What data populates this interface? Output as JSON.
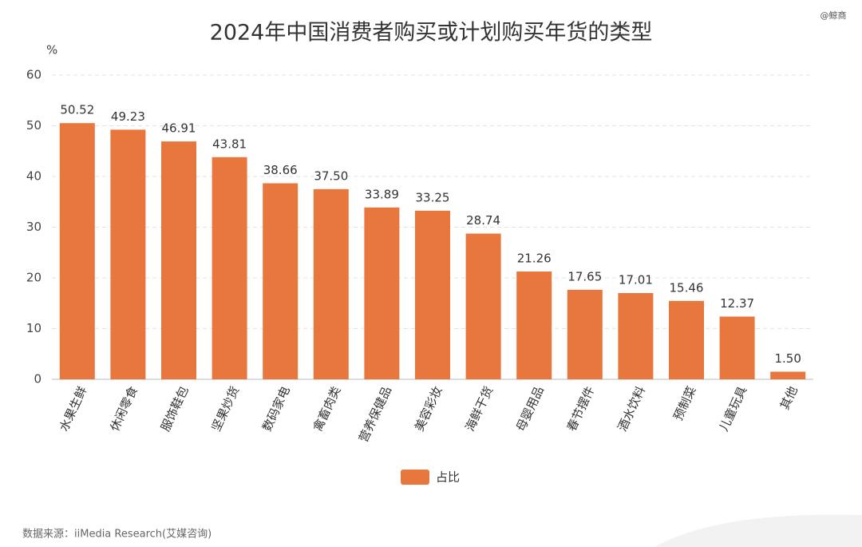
{
  "chart_data": {
    "type": "bar",
    "title": "2024年中国消费者购买或计划购买年货的类型",
    "y_unit": "%",
    "source": "数据来源：iiMedia Research(艾媒咨询)",
    "watermark": "@鲸商",
    "categories": [
      "水果生鲜",
      "休闲零食",
      "服饰鞋包",
      "坚果炒货",
      "数码家电",
      "禽畜肉类",
      "营养保健品",
      "美容彩妆",
      "海鲜干货",
      "母婴用品",
      "春节摆件",
      "酒水饮料",
      "预制菜",
      "儿童玩具",
      "其他"
    ],
    "series": [
      {
        "name": "占比",
        "color": "#e8773d",
        "values": [
          50.52,
          49.23,
          46.91,
          43.81,
          38.66,
          37.5,
          33.89,
          33.25,
          28.74,
          21.26,
          17.65,
          17.01,
          15.46,
          12.37,
          1.5
        ],
        "value_labels": [
          "50.52",
          "49.23",
          "46.91",
          "43.81",
          "38.66",
          "37.50",
          "33.89",
          "33.25",
          "28.74",
          "21.26",
          "17.65",
          "17.01",
          "15.46",
          "12.37",
          "1.50"
        ]
      }
    ],
    "ylim": [
      0,
      60
    ],
    "yticks": [
      0,
      10,
      20,
      30,
      40,
      50,
      60
    ],
    "grid": true
  }
}
